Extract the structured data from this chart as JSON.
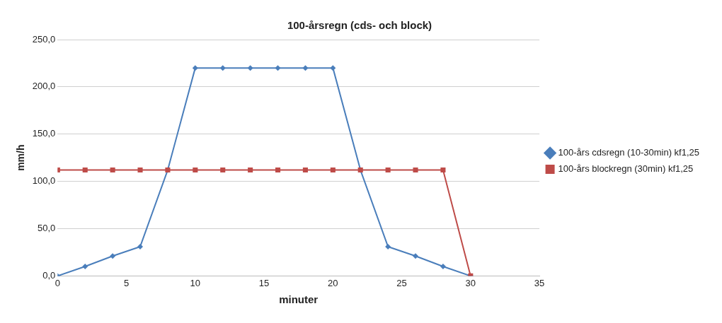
{
  "chart_data": {
    "type": "line",
    "title": "100-årsregn (cds- och block)",
    "xlabel": "minuter",
    "ylabel": "mm/h",
    "x": [
      0,
      2,
      4,
      6,
      8,
      10,
      12,
      14,
      16,
      18,
      20,
      22,
      24,
      26,
      28,
      30
    ],
    "series": [
      {
        "name": "100-års cdsregn (10-30min) kf1,25",
        "color": "#4a7ebb",
        "marker": "diamond",
        "values": [
          0,
          10,
          21,
          31,
          112,
          220,
          220,
          220,
          220,
          220,
          220,
          112,
          31,
          21,
          10,
          0
        ]
      },
      {
        "name": "100-års blockregn (30min) kf1,25",
        "color": "#be4b48",
        "marker": "square",
        "values": [
          112,
          112,
          112,
          112,
          112,
          112,
          112,
          112,
          112,
          112,
          112,
          112,
          112,
          112,
          112,
          0
        ]
      }
    ],
    "xlim": [
      0,
      35
    ],
    "xticks": [
      0,
      5,
      10,
      15,
      20,
      25,
      30,
      35
    ],
    "ylim": [
      0,
      250
    ],
    "yticks": [
      {
        "value": 0,
        "label": "0,0"
      },
      {
        "value": 50,
        "label": "50,0"
      },
      {
        "value": 100,
        "label": "100,0"
      },
      {
        "value": 150,
        "label": "150,0"
      },
      {
        "value": 200,
        "label": "200,0"
      },
      {
        "value": 250,
        "label": "250,0"
      }
    ],
    "grid": "y",
    "legend": "right",
    "line_style": "solid"
  }
}
